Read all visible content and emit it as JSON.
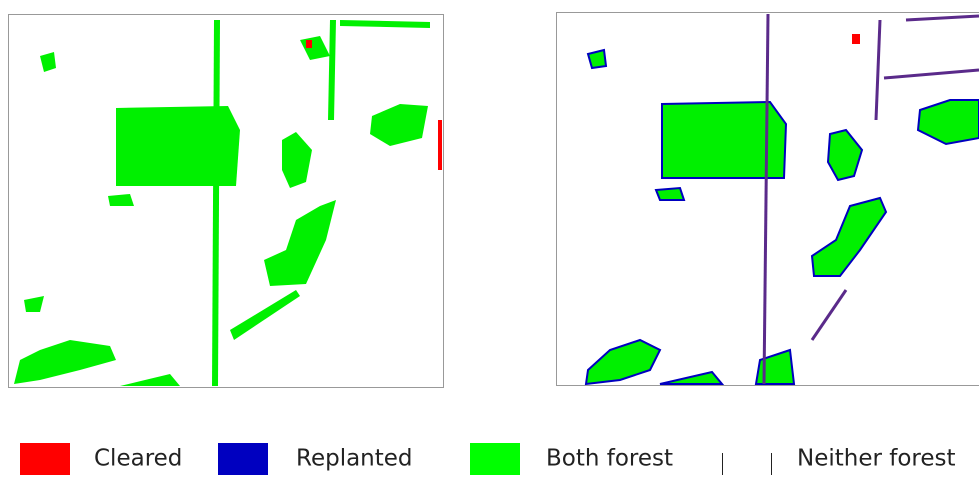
{
  "legend": {
    "items": [
      {
        "label": "Cleared",
        "color": "#ff0000"
      },
      {
        "label": "Replanted",
        "color": "#0000c0"
      },
      {
        "label": "Both forest",
        "color": "#00ff00"
      },
      {
        "label": "Neither forest",
        "color": "#ffffff"
      }
    ]
  }
}
